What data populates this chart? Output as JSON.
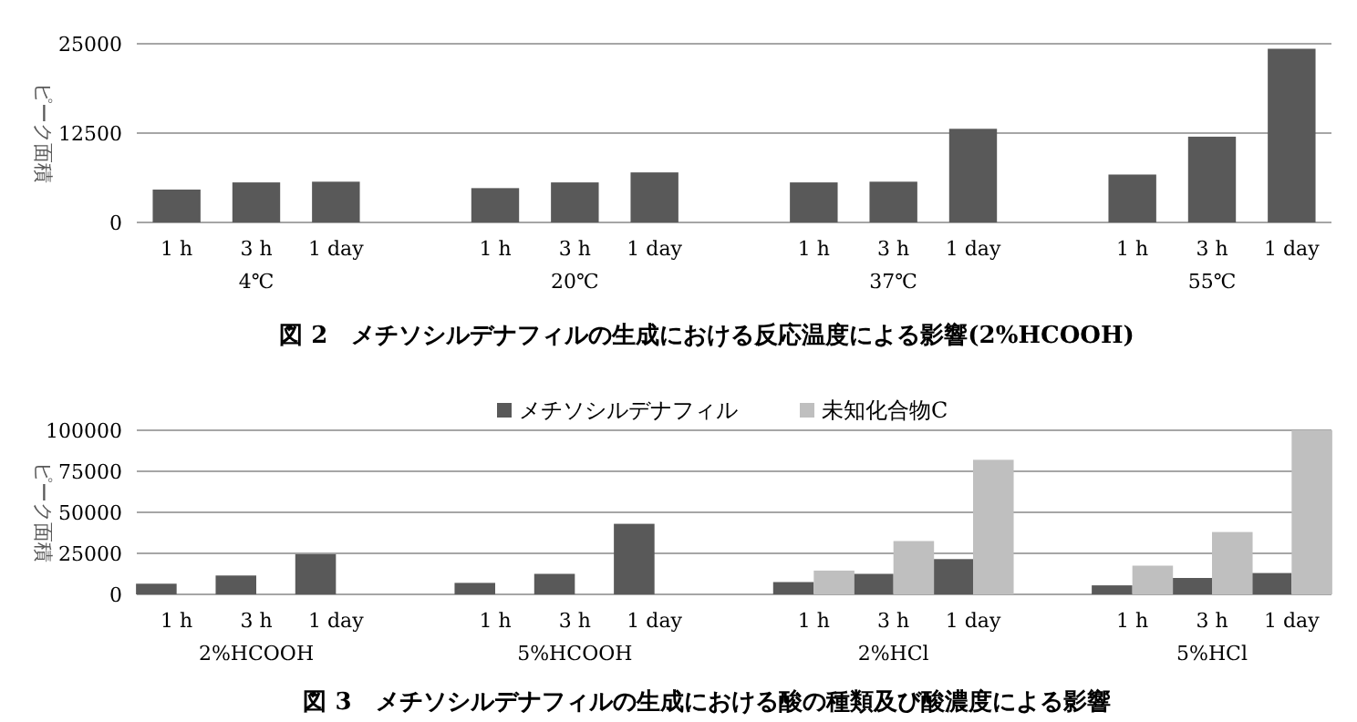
{
  "chart_data": [
    {
      "type": "bar",
      "title": "図 2　メチソシルデナフィルの生成における反応温度による影響(2%HCOOH)",
      "ylabel": "ピーク面積",
      "categories": [
        "1 h",
        "3 h",
        "1 day",
        null,
        "1 h",
        "3 h",
        "1 day",
        null,
        "1 h",
        "3 h",
        "1 day",
        null,
        "1 h",
        "3 h",
        "1 day"
      ],
      "annotations": [
        "4℃",
        "20℃",
        "37℃",
        "55℃"
      ],
      "series": [
        {
          "color": "#595959",
          "values": [
            4600,
            5600,
            5700,
            null,
            4800,
            5600,
            7000,
            null,
            5600,
            5700,
            13100,
            null,
            6700,
            12000,
            24300
          ]
        }
      ],
      "ylim": [
        0,
        25000
      ],
      "yticks": [
        0,
        12500,
        25000
      ],
      "grid": "y",
      "legend": false
    },
    {
      "type": "bar",
      "title": "図 3　メチソシルデナフィルの生成における酸の種類及び酸濃度による影響",
      "ylabel": "ピーク面積",
      "categories": [
        "1 h",
        "3 h",
        "1 day",
        null,
        "1 h",
        "3 h",
        "1 day",
        null,
        "1 h",
        "3 h",
        "1 day",
        null,
        "1 h",
        "3 h",
        "1 day"
      ],
      "annotations": [
        "2%HCOOH",
        "5%HCOOH",
        "2%HCl",
        "5%HCl"
      ],
      "series": [
        {
          "name": "メチソシルデナフィル",
          "color": "#595959",
          "values": [
            6500,
            11500,
            24500,
            null,
            7000,
            12500,
            43000,
            null,
            7500,
            12500,
            21500,
            null,
            5500,
            10000,
            13000
          ]
        },
        {
          "name": "未知化合物C",
          "color": "#bfbfbf",
          "values": [
            null,
            null,
            null,
            null,
            null,
            null,
            null,
            null,
            14500,
            32500,
            82000,
            null,
            17500,
            38000,
            100000
          ]
        }
      ],
      "ylim": [
        0,
        100000
      ],
      "yticks": [
        0,
        25000,
        50000,
        75000,
        100000
      ],
      "grid": "y",
      "legend": "top"
    }
  ]
}
